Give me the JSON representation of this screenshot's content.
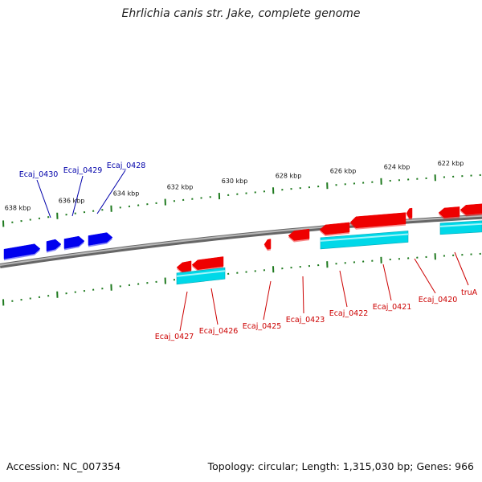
{
  "title": "Ehrlichia canis str. Jake, complete genome",
  "footer": {
    "accession": "Accession: NC_007354",
    "summary": "Topology: circular; Length: 1,315,030 bp; Genes: 966"
  },
  "colors": {
    "forward_gene": "#ee0000",
    "reverse_gene": "#0000ee",
    "cds": "#00d8e8",
    "backbone": "#8a8a8a",
    "ticks": "#1f7a1f",
    "forward_label": "#cc0000",
    "reverse_label": "#0000aa"
  },
  "scale_labels": [
    "638 kbp",
    "636 kbp",
    "634 kbp",
    "632 kbp",
    "630 kbp",
    "628 kbp",
    "626 kbp",
    "624 kbp",
    "622 kbp"
  ],
  "genes_reverse": [
    "Ecaj_0430",
    "Ecaj_0429",
    "Ecaj_0428"
  ],
  "genes_forward": [
    "Ecaj_0427",
    "Ecaj_0426",
    "Ecaj_0425",
    "Ecaj_0423",
    "Ecaj_0422",
    "Ecaj_0421",
    "Ecaj_0420",
    "truA"
  ]
}
